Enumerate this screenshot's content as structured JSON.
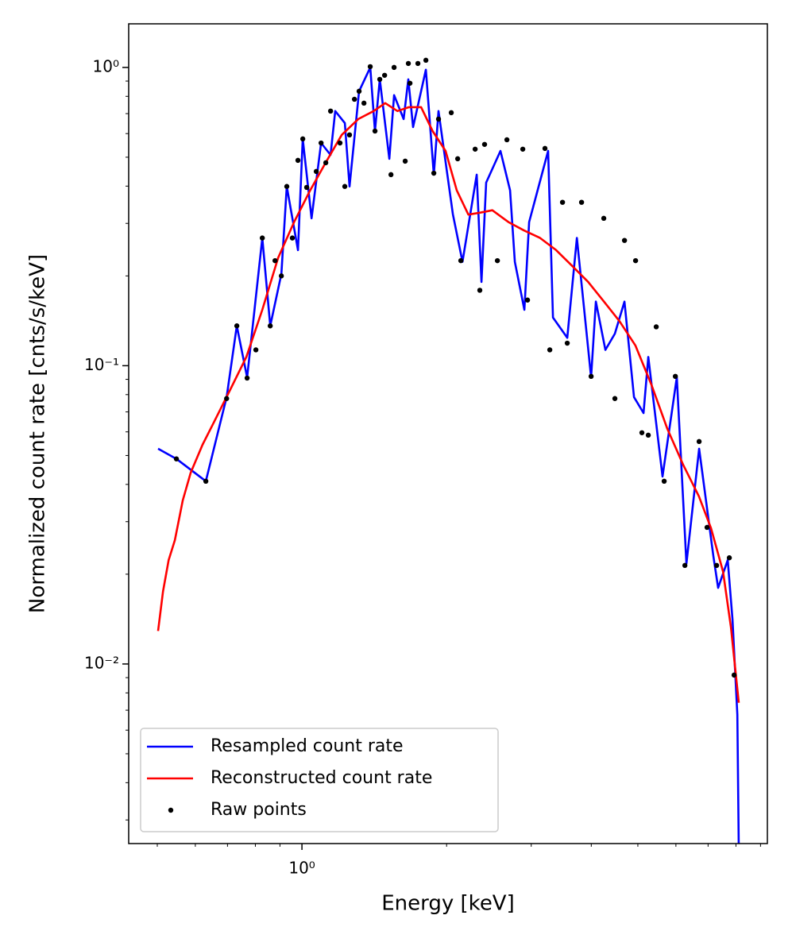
{
  "chart_data": {
    "type": "line",
    "xlabel": "Energy [keV]",
    "ylabel": "Normalized count rate [cnts/s/keV]",
    "log_x": true,
    "log_y": true,
    "xlim": [
      0.436,
      9.3
    ],
    "ylim": [
      0.0025,
      1.4
    ],
    "xticks": [
      {
        "value": 1,
        "label": "10⁰"
      }
    ],
    "yticks": [
      {
        "value": 0.01,
        "label": "10⁻²"
      },
      {
        "value": 0.1,
        "label": "10⁻¹"
      },
      {
        "value": 1,
        "label": "10⁰"
      }
    ],
    "xminor_ticks": [
      0.5,
      0.6,
      0.7,
      0.8,
      0.9,
      2,
      3,
      4,
      5,
      6,
      7,
      8,
      9
    ],
    "yminor_ticks": [
      0.003,
      0.004,
      0.005,
      0.006,
      0.007,
      0.008,
      0.009,
      0.02,
      0.03,
      0.04,
      0.05,
      0.06,
      0.07,
      0.08,
      0.09,
      0.2,
      0.3,
      0.4,
      0.5,
      0.6,
      0.7,
      0.8,
      0.9
    ],
    "legend": "lower left",
    "series": [
      {
        "name": "Resampled count rate",
        "color": "#0000ff",
        "kind": "line",
        "x": [
          0.502,
          0.548,
          0.631,
          0.697,
          0.732,
          0.769,
          0.827,
          0.859,
          0.906,
          0.93,
          0.981,
          1.004,
          1.047,
          1.096,
          1.147,
          1.173,
          1.228,
          1.256,
          1.315,
          1.387,
          1.419,
          1.452,
          1.52,
          1.555,
          1.628,
          1.665,
          1.703,
          1.811,
          1.881,
          1.924,
          2.061,
          2.158,
          2.31,
          2.364,
          2.417,
          2.589,
          2.711,
          2.773,
          2.903,
          2.97,
          3.253,
          3.329,
          3.565,
          3.733,
          3.997,
          4.089,
          4.28,
          4.479,
          4.69,
          4.909,
          5.137,
          5.256,
          5.628,
          6.026,
          6.31,
          6.706,
          7.178,
          7.346,
          7.691,
          7.87,
          8.053,
          8.11
        ],
        "values": [
          0.0527,
          0.0487,
          0.041,
          0.0785,
          0.136,
          0.0914,
          0.268,
          0.136,
          0.203,
          0.399,
          0.244,
          0.576,
          0.312,
          0.558,
          0.509,
          0.714,
          0.651,
          0.399,
          0.832,
          1.0,
          0.612,
          0.912,
          0.494,
          0.807,
          0.671,
          0.912,
          0.631,
          0.982,
          0.437,
          0.714,
          0.322,
          0.223,
          0.437,
          0.191,
          0.411,
          0.525,
          0.387,
          0.223,
          0.154,
          0.303,
          0.525,
          0.145,
          0.124,
          0.268,
          0.0914,
          0.164,
          0.113,
          0.128,
          0.164,
          0.0785,
          0.0694,
          0.107,
          0.0425,
          0.0914,
          0.0217,
          0.0527,
          0.023,
          0.018,
          0.0223,
          0.0141,
          0.00676,
          0.0024
        ]
      },
      {
        "name": "Reconstructed count rate",
        "color": "#ff0000",
        "kind": "line",
        "x": [
          0.502,
          0.514,
          0.528,
          0.544,
          0.565,
          0.587,
          0.621,
          0.658,
          0.71,
          0.766,
          0.827,
          0.892,
          0.963,
          1.04,
          1.12,
          1.21,
          1.31,
          1.41,
          1.49,
          1.58,
          1.67,
          1.77,
          1.87,
          1.99,
          2.1,
          2.22,
          2.35,
          2.49,
          2.69,
          2.9,
          3.13,
          3.38,
          3.65,
          3.94,
          4.25,
          4.58,
          4.94,
          5.34,
          5.76,
          6.21,
          6.7,
          7.1,
          7.52,
          7.81,
          8.11
        ],
        "values": [
          0.0129,
          0.0175,
          0.0223,
          0.026,
          0.0354,
          0.0438,
          0.0543,
          0.0653,
          0.0834,
          0.107,
          0.154,
          0.23,
          0.303,
          0.387,
          0.479,
          0.594,
          0.671,
          0.714,
          0.759,
          0.714,
          0.736,
          0.736,
          0.612,
          0.525,
          0.387,
          0.321,
          0.326,
          0.332,
          0.303,
          0.284,
          0.268,
          0.244,
          0.216,
          0.191,
          0.164,
          0.141,
          0.117,
          0.0861,
          0.0614,
          0.0466,
          0.0365,
          0.0285,
          0.0204,
          0.0133,
          0.00741
        ]
      },
      {
        "name": "Raw points",
        "color": "#000000",
        "kind": "scatter",
        "x": [
          0.548,
          0.631,
          0.697,
          0.732,
          0.769,
          0.802,
          0.827,
          0.859,
          0.879,
          0.906,
          0.93,
          0.955,
          0.981,
          1.004,
          1.023,
          1.071,
          1.096,
          1.121,
          1.147,
          1.2,
          1.228,
          1.256,
          1.286,
          1.315,
          1.346,
          1.387,
          1.419,
          1.452,
          1.486,
          1.532,
          1.555,
          1.64,
          1.665,
          1.678,
          1.743,
          1.811,
          1.881,
          1.924,
          2.045,
          2.109,
          2.141,
          2.293,
          2.345,
          2.399,
          2.551,
          2.67,
          2.881,
          2.947,
          3.204,
          3.279,
          3.485,
          3.565,
          3.818,
          3.997,
          4.247,
          4.479,
          4.69,
          4.946,
          5.098,
          5.256,
          5.46,
          5.672,
          5.984,
          6.264,
          6.706,
          6.966,
          7.292,
          7.75,
          7.929
        ],
        "values": [
          0.0487,
          0.041,
          0.0776,
          0.136,
          0.0909,
          0.113,
          0.268,
          0.136,
          0.225,
          0.2,
          0.399,
          0.268,
          0.488,
          0.576,
          0.396,
          0.448,
          0.558,
          0.479,
          0.714,
          0.558,
          0.399,
          0.594,
          0.782,
          0.832,
          0.759,
          1.006,
          0.612,
          0.912,
          0.941,
          0.437,
          1.0,
          0.485,
          1.031,
          0.885,
          1.031,
          1.057,
          0.442,
          0.671,
          0.705,
          0.494,
          0.225,
          0.532,
          0.179,
          0.552,
          0.225,
          0.572,
          0.532,
          0.166,
          0.535,
          0.113,
          0.353,
          0.119,
          0.353,
          0.0921,
          0.312,
          0.0776,
          0.263,
          0.225,
          0.0596,
          0.0585,
          0.135,
          0.041,
          0.0921,
          0.0214,
          0.0557,
          0.0287,
          0.0214,
          0.0227,
          0.00918
        ]
      }
    ]
  }
}
